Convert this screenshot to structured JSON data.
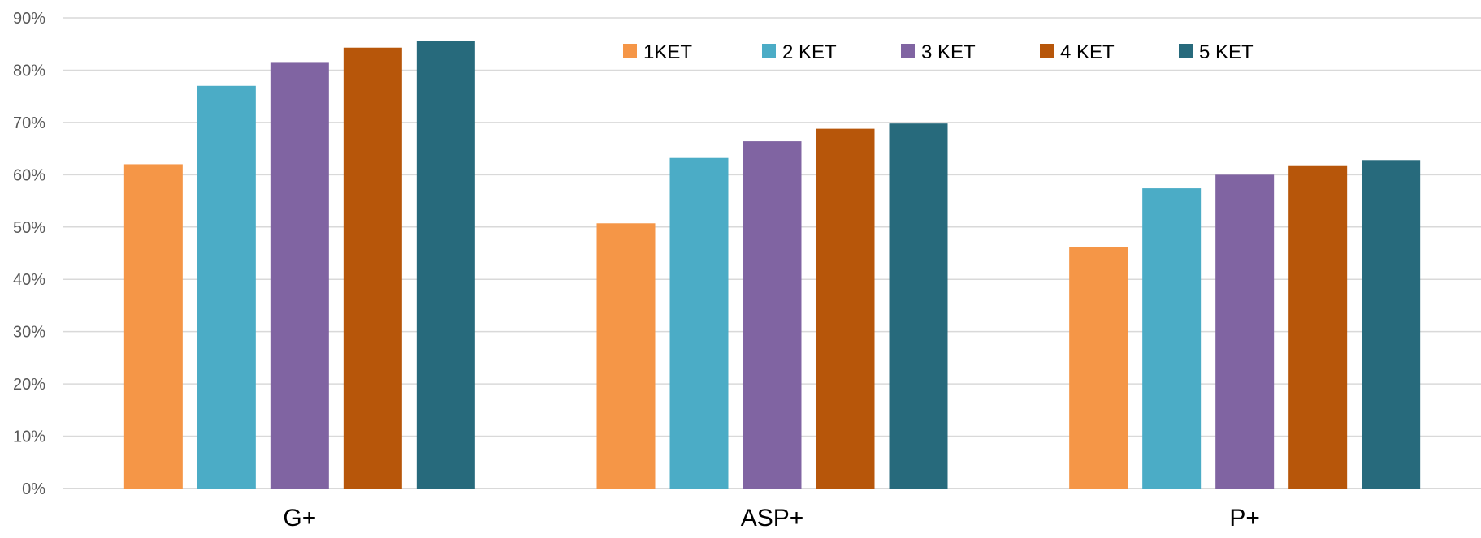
{
  "chart_data": {
    "type": "bar",
    "categories": [
      "G+",
      "ASP+",
      "P+"
    ],
    "series": [
      {
        "name": "1KET",
        "values": [
          62,
          50.7,
          46.2
        ],
        "color": "#F59647"
      },
      {
        "name": "2 KET",
        "values": [
          77,
          63.2,
          57.4
        ],
        "color": "#4BACC6"
      },
      {
        "name": "3 KET",
        "values": [
          81.4,
          66.4,
          60
        ],
        "color": "#8064A2"
      },
      {
        "name": "4 KET",
        "values": [
          84.3,
          68.8,
          61.8
        ],
        "color": "#B7560A"
      },
      {
        "name": "5 KET",
        "values": [
          85.6,
          69.8,
          62.8
        ],
        "color": "#276A7C"
      }
    ],
    "ylim": [
      0,
      90
    ],
    "yticks": [
      0,
      10,
      20,
      30,
      40,
      50,
      60,
      70,
      80,
      90
    ],
    "ytick_labels": [
      "0%",
      "10%",
      "20%",
      "30%",
      "40%",
      "50%",
      "60%",
      "70%",
      "80%",
      "90%"
    ],
    "grid": true,
    "legend_position": "top-center",
    "title": "",
    "xlabel": "",
    "ylabel": ""
  }
}
